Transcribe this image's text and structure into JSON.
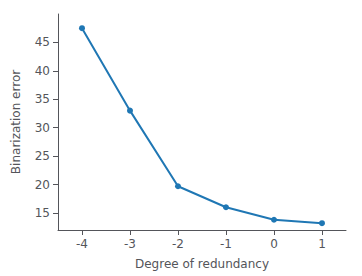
{
  "chart_data": {
    "type": "line",
    "x": [
      -4,
      -3,
      -2,
      -1,
      0,
      1
    ],
    "values": [
      47.5,
      33.0,
      19.7,
      16.0,
      13.8,
      13.2
    ],
    "xlabel": "Degree of redundancy",
    "ylabel": "Binarization error",
    "color": "#1f77b4",
    "marker": "circle",
    "xlim": [
      -4.5,
      1.5
    ],
    "ylim": [
      12,
      50
    ],
    "xticks": [
      -4,
      -3,
      -2,
      -1,
      0,
      1
    ],
    "yticks": [
      15,
      20,
      25,
      30,
      35,
      40,
      45
    ],
    "grid": false
  }
}
